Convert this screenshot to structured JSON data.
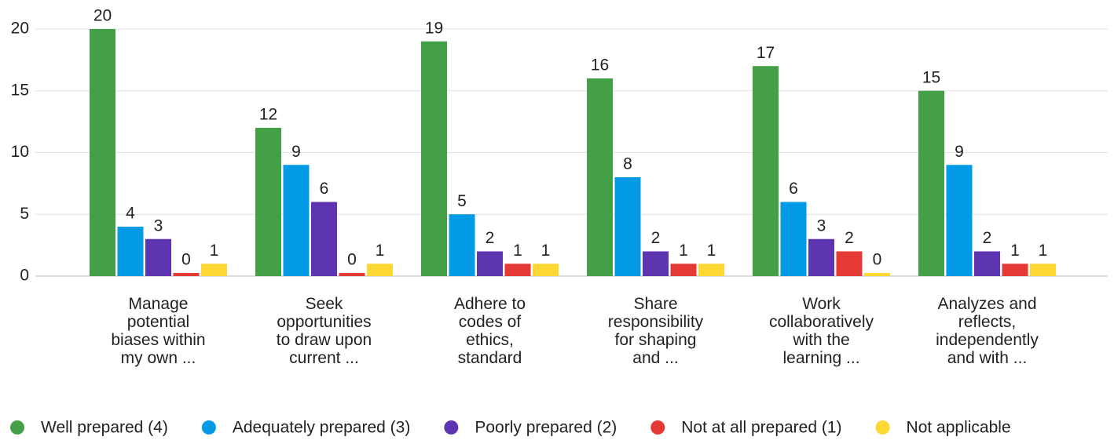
{
  "chart_data": {
    "type": "bar",
    "categories": [
      "Manage potential biases within my own ...",
      "Seek opportunities to draw upon current ...",
      "Adhere to codes of ethics, standard",
      "Share responsibility for shaping and ...",
      "Work collaboratively with the learning ...",
      "Analyzes and reflects, independently and with ..."
    ],
    "series": [
      {
        "name": "Well prepared (4)",
        "color": "#43a047",
        "values": [
          20,
          12,
          19,
          16,
          17,
          15
        ]
      },
      {
        "name": "Adequately prepared (3)",
        "color": "#039be5",
        "values": [
          4,
          9,
          5,
          8,
          6,
          9
        ]
      },
      {
        "name": "Poorly prepared (2)",
        "color": "#5e35b1",
        "values": [
          3,
          6,
          2,
          2,
          3,
          2
        ]
      },
      {
        "name": "Not at all prepared (1)",
        "color": "#e53935",
        "values": [
          0,
          0,
          1,
          1,
          2,
          1
        ]
      },
      {
        "name": "Not applicable",
        "color": "#fdd835",
        "values": [
          1,
          1,
          1,
          1,
          0,
          1
        ]
      }
    ],
    "ylim": [
      0,
      20
    ],
    "yticks": [
      0,
      5,
      10,
      15,
      20
    ],
    "grid": true,
    "legend": "bottom"
  }
}
